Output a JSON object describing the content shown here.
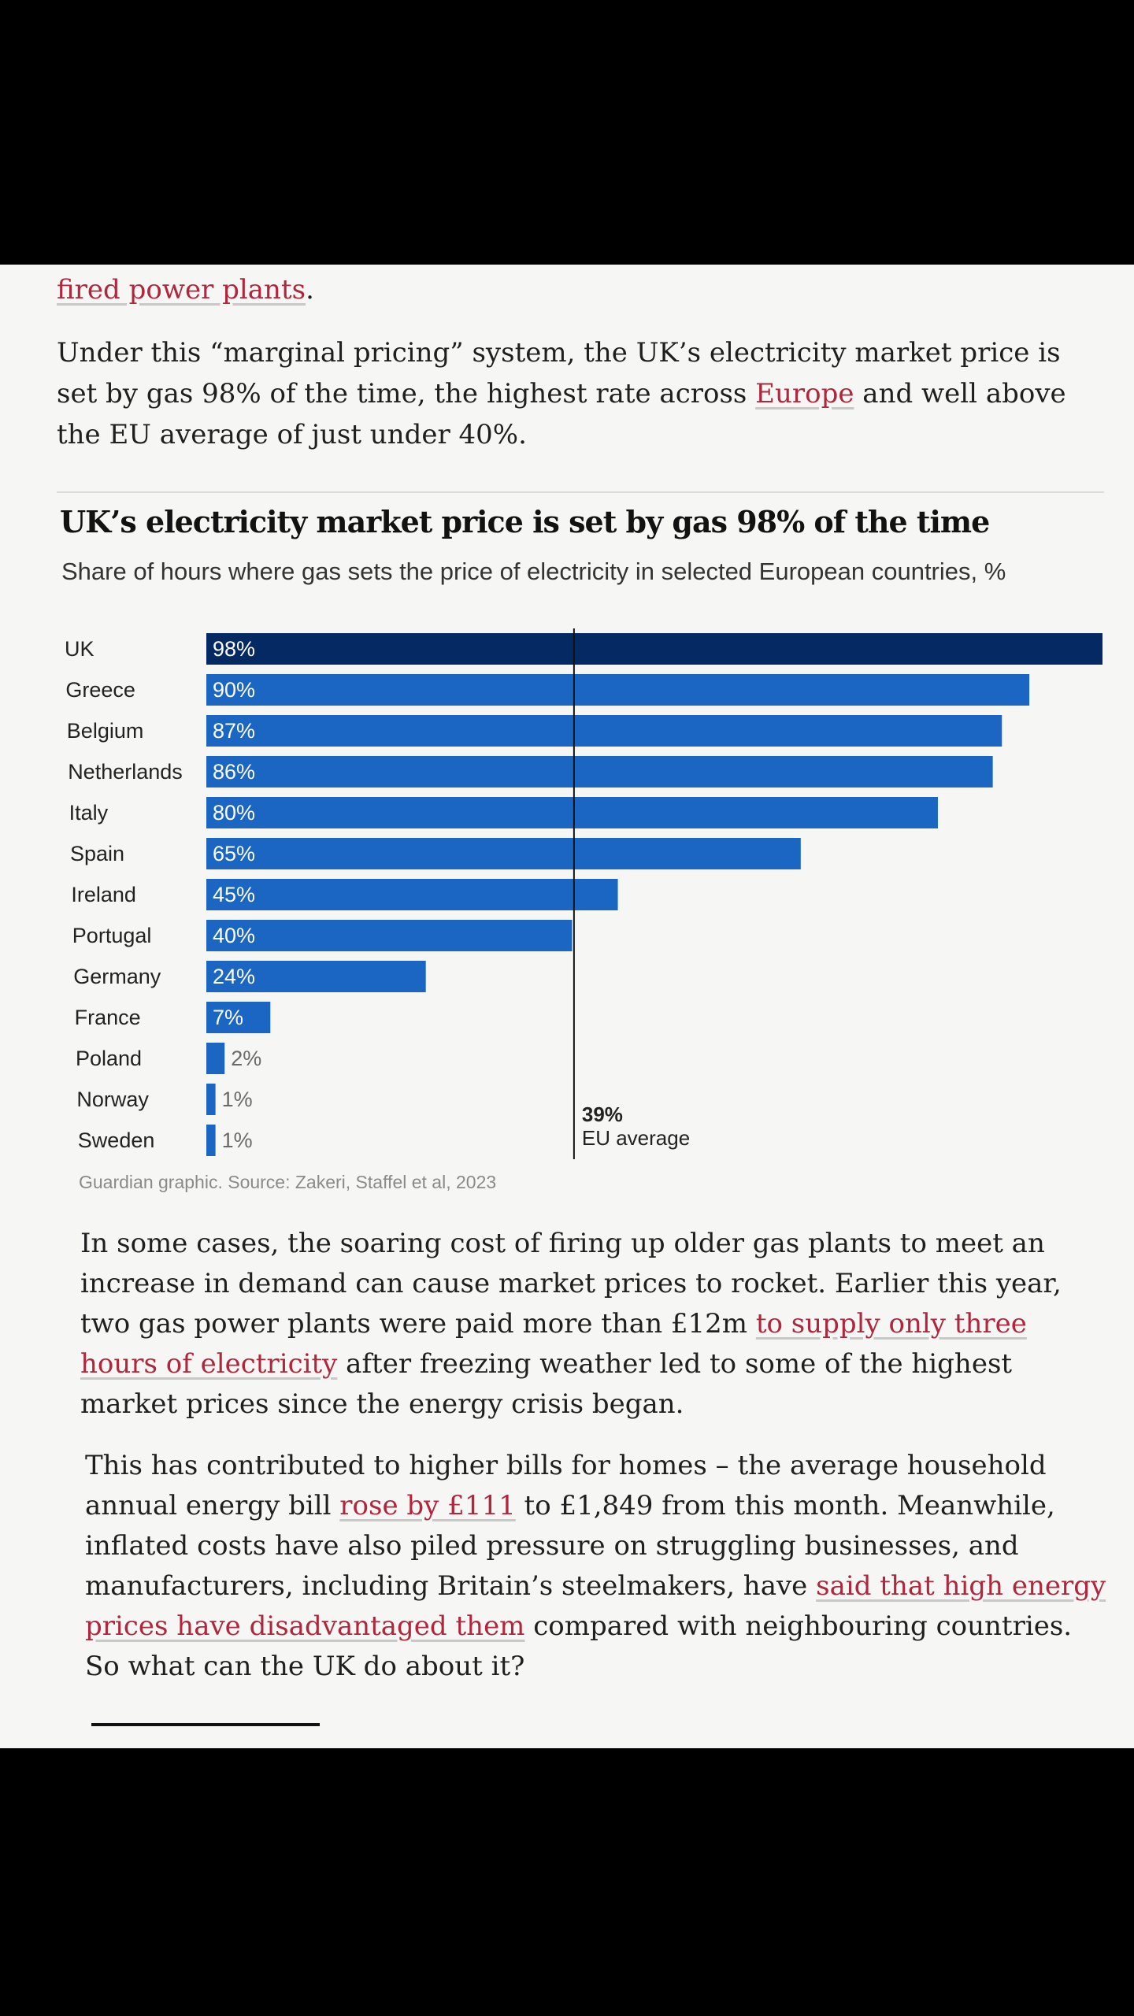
{
  "article": {
    "p0_link": "fired power plants",
    "p0_after": ".",
    "p1_before": "Under this “marginal pricing” system, the UK’s electricity market price is set by gas 98% of the time, the highest rate across ",
    "p1_link": "Europe",
    "p1_after": " and well above the EU average of just under 40%.",
    "p2_before": "In some cases, the soaring cost of firing up older gas plants to meet an increase in demand can cause market prices to rocket. Earlier this year, two gas power plants were paid more than £12m ",
    "p2_link": "to supply only three hours of electricity",
    "p2_after": " after freezing weather led to some of the highest market prices since the energy crisis began.",
    "p3_before": "This has contributed to higher bills for homes – the average household annual energy bill ",
    "p3_link1": "rose by £111",
    "p3_mid": " to £1,849 from this month. Meanwhile, inflated costs have also piled pressure on struggling businesses, and manufacturers, including Britain’s steelmakers, have ",
    "p3_link2": "said that high energy prices have disadvantaged them",
    "p3_after": " compared with neighbouring countries. So what can the UK do about it?"
  },
  "chart_data": {
    "type": "bar",
    "orientation": "horizontal",
    "title": "UK’s electricity market price is set by gas 98% of the time",
    "subtitle": "Share of hours where gas sets the price of electricity in selected European countries, %",
    "categories": [
      "UK",
      "Greece",
      "Belgium",
      "Netherlands",
      "Italy",
      "Spain",
      "Ireland",
      "Portugal",
      "Germany",
      "France",
      "Poland",
      "Norway",
      "Sweden"
    ],
    "values": [
      98,
      90,
      87,
      86,
      80,
      65,
      45,
      40,
      24,
      7,
      2,
      1,
      1
    ],
    "value_suffix": "%",
    "xlim": [
      0,
      98
    ],
    "reference_line": {
      "value": 39,
      "label_value": "39%",
      "label_text": "EU average"
    },
    "source": "Guardian graphic. Source: Zakeri, Staffel et al, 2023",
    "colors": {
      "highlight": "#052962",
      "bar": "#1a66c2",
      "label_text": "#ffffff",
      "small_label_text": "#6a6a6a"
    }
  }
}
